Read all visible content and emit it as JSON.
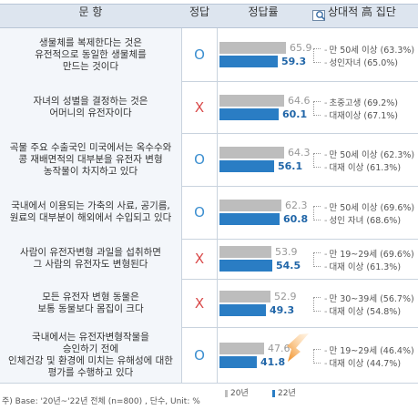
{
  "header": {
    "question": "문 항",
    "answer": "정답",
    "rate": "정답률",
    "group": "상대적 高 집단"
  },
  "chart_data": {
    "type": "bar",
    "orientation": "horizontal",
    "grid": false,
    "legend_placement": "bottom",
    "categories": [
      "생물체를 복제한다는 것은 유전적으로 동일한 생물체를 만드는 것이다",
      "자녀의 성별을 결정하는 것은 어머니의 유전자이다",
      "곡물 주요 수출국인 미국에서는 옥수수와 콩 재배면적의 대부분을 유전자 변형 농작물이 차지하고 있다",
      "국내에서 이용되는 가축의 사료, 공기름, 원료의 대부분이 해외에서 수입되고 있다",
      "사람이 유전자변형 과일을 섭취하면 그 사람의 유전자도 변형된다",
      "모든 유전자 변형 동물은 보통 동물보다 몸집이 크다",
      "국내에서는 유전자변형작물을 승인하기 전에 인체건강 및 환경에 미치는 유해성에 대한 평가를 수행하고 있다"
    ],
    "series": [
      {
        "name": "20년",
        "values": [
          65.9,
          64.6,
          64.3,
          62.3,
          53.9,
          52.9,
          47.6
        ],
        "color": "#bdbdbd"
      },
      {
        "name": "22년",
        "values": [
          59.3,
          60.1,
          56.1,
          60.8,
          54.5,
          49.3,
          41.8
        ],
        "color": "#2a7dc4"
      }
    ],
    "xlim": [
      0,
      100
    ]
  },
  "rows": [
    {
      "q1": "생물체를 복제한다는 것은",
      "q2": "유전적으로 동일한 생물체를",
      "q3": "만드는 것이다",
      "q4": "",
      "answer": "O",
      "g1": "만 50세 이상 (63.3%)",
      "g2": "성인자녀 (65.0%)"
    },
    {
      "q1": "자녀의 성별을 결정하는 것은",
      "q2": "어머니의 유전자이다",
      "q3": "",
      "q4": "",
      "answer": "X",
      "g1": "초중고생 (69.2%)",
      "g2": "대재이상 (67.1%)"
    },
    {
      "q1": "곡물 주요 수출국인 미국에서는 옥수수와",
      "q2": "콩 재배면적의 대부분을 유전자 변형",
      "q3": "농작물이 차지하고 있다",
      "q4": "",
      "answer": "O",
      "g1": "만 50세 이상 (62.3%)",
      "g2": "대재 이상 (61.3%)"
    },
    {
      "q1": "국내에서 이용되는 가축의 사료, 공기름,",
      "q2": "원료의 대부분이 해외에서 수입되고 있다",
      "q3": "",
      "q4": "",
      "answer": "O",
      "g1": "만 50세 이상 (69.6%)",
      "g2": "성인 자녀 (68.6%)"
    },
    {
      "q1": "사람이 유전자변형 과일을 섭취하면",
      "q2": "그 사람의 유전자도 변형된다",
      "q3": "",
      "q4": "",
      "answer": "X",
      "g1": "만 19~29세 (69.6%)",
      "g2": "대재 이상 (61.3%)"
    },
    {
      "q1": "모든 유전자 변형 동물은",
      "q2": "보통 동물보다 몸집이 크다",
      "q3": "",
      "q4": "",
      "answer": "X",
      "g1": "만 30~39세 (56.7%)",
      "g2": "대재 이상 (54.8%)"
    },
    {
      "q1": "국내에서는 유전자변형작물을",
      "q2": "승인하기 전에",
      "q3": "인체건강 및 환경에 미치는 유해성에 대한",
      "q4": "평가를 수행하고 있다",
      "answer": "O",
      "g1": "만 19~29세 (46.4%)",
      "g2": "대재 이상 (44.7%)"
    }
  ],
  "legend": {
    "s20": "20년",
    "s22": "22년"
  },
  "footnote": "주) Base: '20년~'22년 전체 (n=800) , 단수, Unit: %"
}
